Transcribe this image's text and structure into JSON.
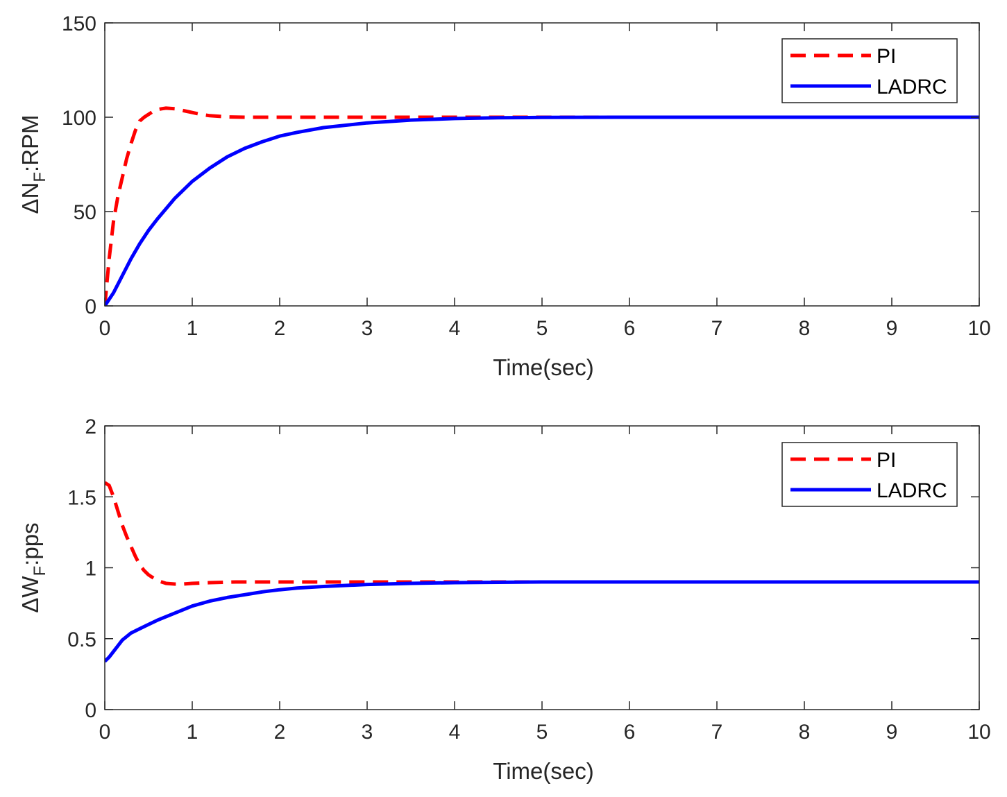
{
  "chart_data": [
    {
      "type": "line",
      "xlabel": "Time(sec)",
      "ylabel": "ΔN",
      "ylabel_sub": "F",
      "ylabel_suffix": ":RPM",
      "xlim": [
        0,
        10
      ],
      "ylim": [
        0,
        150
      ],
      "xticks": [
        0,
        1,
        2,
        3,
        4,
        5,
        6,
        7,
        8,
        9,
        10
      ],
      "yticks": [
        0,
        50,
        100,
        150
      ],
      "grid": false,
      "legend_position": "top-right",
      "series": [
        {
          "name": "PI",
          "color": "#ff0000",
          "style": "dashed",
          "x": [
            0,
            0.05,
            0.1,
            0.15,
            0.2,
            0.25,
            0.3,
            0.35,
            0.4,
            0.45,
            0.5,
            0.55,
            0.6,
            0.65,
            0.7,
            0.8,
            0.9,
            1.0,
            1.1,
            1.2,
            1.4,
            1.6,
            1.8,
            2.0,
            2.5,
            3.0,
            4.0,
            5.0,
            6.0,
            7.0,
            8.0,
            9.0,
            10.0
          ],
          "y": [
            0,
            25,
            45,
            58,
            68,
            78,
            86,
            93,
            98,
            100,
            101.5,
            103,
            104,
            104.5,
            104.8,
            104.5,
            103.5,
            102.5,
            101.5,
            100.8,
            100.2,
            100,
            100,
            100,
            100,
            100,
            100,
            100,
            100,
            100,
            100,
            100,
            100
          ]
        },
        {
          "name": "LADRC",
          "color": "#0000ff",
          "style": "solid",
          "x": [
            0,
            0.1,
            0.2,
            0.3,
            0.4,
            0.5,
            0.6,
            0.8,
            1.0,
            1.2,
            1.4,
            1.6,
            1.8,
            2.0,
            2.2,
            2.5,
            3.0,
            3.5,
            4.0,
            4.5,
            5.0,
            6.0,
            7.0,
            8.0,
            9.0,
            10.0
          ],
          "y": [
            0,
            7,
            16,
            25,
            33,
            40,
            46,
            57,
            66,
            73,
            79,
            83.5,
            87,
            90,
            92,
            94.5,
            97,
            98.5,
            99.3,
            99.7,
            99.9,
            100,
            100,
            100,
            100,
            100
          ]
        }
      ]
    },
    {
      "type": "line",
      "xlabel": "Time(sec)",
      "ylabel": "ΔW",
      "ylabel_sub": "F",
      "ylabel_suffix": ":pps",
      "xlim": [
        0,
        10
      ],
      "ylim": [
        0,
        2
      ],
      "xticks": [
        0,
        1,
        2,
        3,
        4,
        5,
        6,
        7,
        8,
        9,
        10
      ],
      "yticks": [
        0,
        0.5,
        1,
        1.5,
        2
      ],
      "grid": false,
      "legend_position": "top-right",
      "series": [
        {
          "name": "PI",
          "color": "#ff0000",
          "style": "dashed",
          "x": [
            0,
            0.05,
            0.1,
            0.15,
            0.2,
            0.25,
            0.3,
            0.35,
            0.4,
            0.45,
            0.5,
            0.55,
            0.6,
            0.7,
            0.8,
            0.9,
            1.0,
            1.2,
            1.5,
            2.0,
            2.5,
            3.0,
            4.0,
            5.0,
            6.0,
            7.0,
            8.0,
            9.0,
            10.0
          ],
          "y": [
            1.6,
            1.58,
            1.5,
            1.4,
            1.3,
            1.22,
            1.15,
            1.08,
            1.02,
            0.98,
            0.95,
            0.93,
            0.91,
            0.89,
            0.885,
            0.885,
            0.89,
            0.895,
            0.9,
            0.9,
            0.9,
            0.9,
            0.9,
            0.9,
            0.9,
            0.9,
            0.9,
            0.9,
            0.9
          ]
        },
        {
          "name": "LADRC",
          "color": "#0000ff",
          "style": "solid",
          "x": [
            0,
            0.05,
            0.1,
            0.15,
            0.2,
            0.3,
            0.4,
            0.5,
            0.6,
            0.8,
            1.0,
            1.2,
            1.4,
            1.6,
            1.8,
            2.0,
            2.2,
            2.5,
            3.0,
            3.5,
            4.0,
            5.0,
            6.0,
            7.0,
            8.0,
            9.0,
            10.0
          ],
          "y": [
            0.34,
            0.37,
            0.41,
            0.45,
            0.49,
            0.54,
            0.57,
            0.6,
            0.63,
            0.68,
            0.73,
            0.765,
            0.79,
            0.81,
            0.83,
            0.845,
            0.857,
            0.868,
            0.882,
            0.89,
            0.895,
            0.9,
            0.9,
            0.9,
            0.9,
            0.9,
            0.9
          ]
        }
      ]
    }
  ]
}
